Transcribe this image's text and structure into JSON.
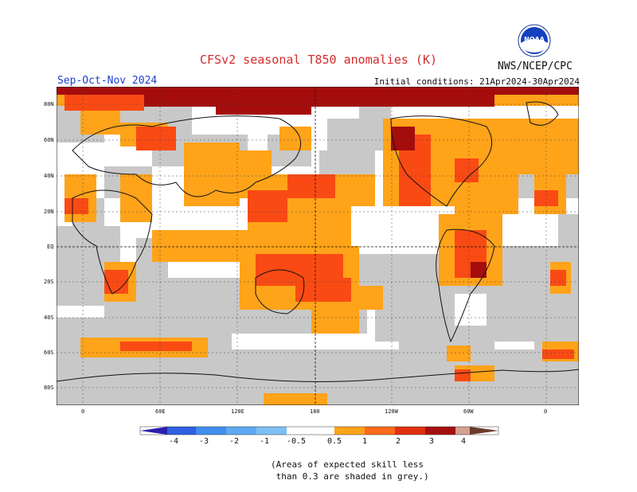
{
  "header": {
    "title": "CFSv2 seasonal T850 anomalies (K)",
    "org": "NWS/NCEP/CPC",
    "season": "Sep-Oct-Nov 2024",
    "initial_conditions": "Initial conditions: 21Apr2024-30Apr2024",
    "logo_text": "NOAA"
  },
  "axes": {
    "lat_ticks": [
      "80N",
      "60N",
      "40N",
      "20N",
      "EQ",
      "20S",
      "40S",
      "60S",
      "80S"
    ],
    "lon_ticks": [
      "0",
      "60E",
      "120E",
      "180",
      "120W",
      "60W",
      "0"
    ]
  },
  "colorbar": {
    "labels": [
      "-4",
      "-3",
      "-2",
      "-1",
      "-0.5",
      "0.5",
      "1",
      "2",
      "3",
      "4"
    ],
    "colors": [
      "#2a1eb0",
      "#2f5ee0",
      "#3f8ff0",
      "#7cc0f5",
      "#ffffff",
      "#ffa31a",
      "#ff6a1a",
      "#e03010",
      "#a50f0f",
      "#d4a090",
      "#6b3a2a"
    ]
  },
  "colors": {
    "grey_low_skill": "#c8c8c8",
    "orange": "#ffa319",
    "red_orange": "#fa4a14",
    "dark_red": "#a50d0d",
    "land_line": "#111111"
  },
  "footer": {
    "note_line1": "(Areas of expected skill less",
    "note_line2": " than 0.3 are shaded in grey.)"
  }
}
